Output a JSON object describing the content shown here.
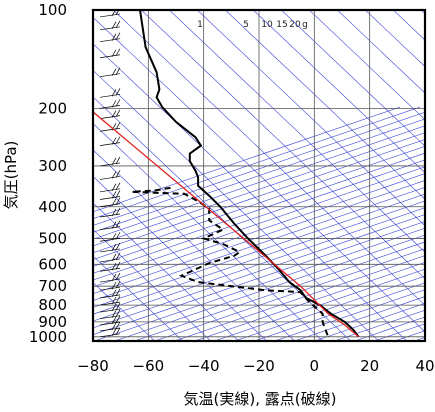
{
  "chart_data": {
    "type": "line",
    "subtype": "skew-t-log-p sounding",
    "xlabel": "気温(実線), 露点(破線)",
    "ylabel": "気圧(hPa)",
    "xlim": [
      -80,
      40
    ],
    "ylim": [
      1030,
      100
    ],
    "y_scale": "log",
    "x_ticks": [
      -80,
      -60,
      -40,
      -20,
      0,
      20,
      40
    ],
    "x_tick_labels": [
      "−80",
      "−60",
      "−40",
      "−20",
      "0",
      "20",
      "40"
    ],
    "y_ticks": [
      100,
      200,
      300,
      400,
      500,
      600,
      700,
      800,
      900,
      1000
    ],
    "y_tick_labels": [
      "100",
      "200",
      "300",
      "400",
      "500",
      "600",
      "700",
      "800",
      "900",
      "1000"
    ],
    "grid": true,
    "mixing_ratio_labels": [
      "1",
      "5",
      "10",
      "15",
      "20",
      "g"
    ],
    "series": [
      {
        "style": "solid",
        "color": "#000000",
        "points": [
          [
            -63,
            100
          ],
          [
            -61,
            130
          ],
          [
            -57,
            155
          ],
          [
            -56,
            175
          ],
          [
            -57,
            185
          ],
          [
            -55,
            198
          ],
          [
            -50,
            220
          ],
          [
            -43,
            245
          ],
          [
            -41,
            260
          ],
          [
            -45,
            275
          ],
          [
            -45,
            290
          ],
          [
            -43,
            310
          ],
          [
            -42,
            325
          ],
          [
            -42,
            345
          ],
          [
            -38,
            370
          ],
          [
            -34,
            400
          ],
          [
            -29,
            450
          ],
          [
            -24,
            500
          ],
          [
            -18,
            560
          ],
          [
            -13,
            620
          ],
          [
            -9,
            680
          ],
          [
            -5,
            720
          ],
          [
            -3,
            760
          ],
          [
            2,
            800
          ],
          [
            6,
            850
          ],
          [
            11,
            900
          ],
          [
            14,
            950
          ],
          [
            16,
            1000
          ]
        ]
      },
      {
        "style": "dashed",
        "color": "#000000",
        "points": [
          [
            -52,
            350
          ],
          [
            -58,
            357
          ],
          [
            -66,
            360
          ],
          [
            -47,
            365
          ],
          [
            -42,
            385
          ],
          [
            -38,
            405
          ],
          [
            -38,
            440
          ],
          [
            -33,
            470
          ],
          [
            -40,
            500
          ],
          [
            -33,
            520
          ],
          [
            -27,
            550
          ],
          [
            -29,
            565
          ],
          [
            -38,
            595
          ],
          [
            -48,
            650
          ],
          [
            -42,
            680
          ],
          [
            -18,
            720
          ],
          [
            -5,
            730
          ],
          [
            -2,
            780
          ],
          [
            3,
            850
          ],
          [
            3,
            900
          ],
          [
            4,
            950
          ],
          [
            5,
            1000
          ]
        ]
      },
      {
        "style": "solid",
        "color": "#e02020",
        "points": [
          [
            -80,
            205
          ],
          [
            -5,
            700
          ],
          [
            5,
            850
          ],
          [
            11,
            920
          ],
          [
            16,
            1000
          ]
        ]
      }
    ]
  }
}
